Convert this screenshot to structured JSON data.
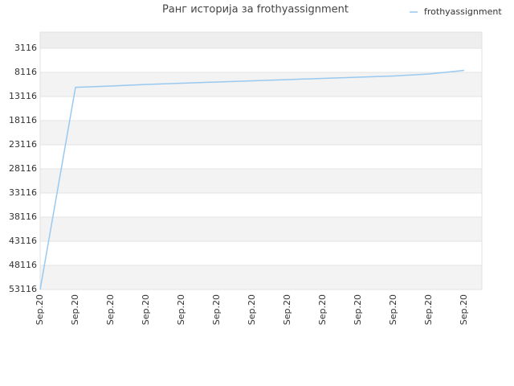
{
  "chart_data": {
    "type": "line",
    "title": "Ранг историја за frothyassignment",
    "categories": [
      "Sep.20",
      "Sep.20",
      "Sep.20",
      "Sep.20",
      "Sep.20",
      "Sep.20",
      "Sep.20",
      "Sep.20",
      "Sep.20",
      "Sep.20",
      "Sep.20",
      "Sep.20",
      "Sep.20"
    ],
    "series": [
      {
        "name": "frothyassignment",
        "color": "#99c9f0",
        "values": [
          53116,
          11216,
          10950,
          10616,
          10366,
          10116,
          9866,
          9616,
          9366,
          9116,
          8866,
          8450,
          7700
        ]
      }
    ],
    "ylim": [
      53116,
      -217
    ],
    "yticks": [
      3116,
      8116,
      13116,
      18116,
      23116,
      28116,
      33116,
      38116,
      43116,
      48116,
      53116
    ],
    "grid": true,
    "legend": "top-right"
  }
}
